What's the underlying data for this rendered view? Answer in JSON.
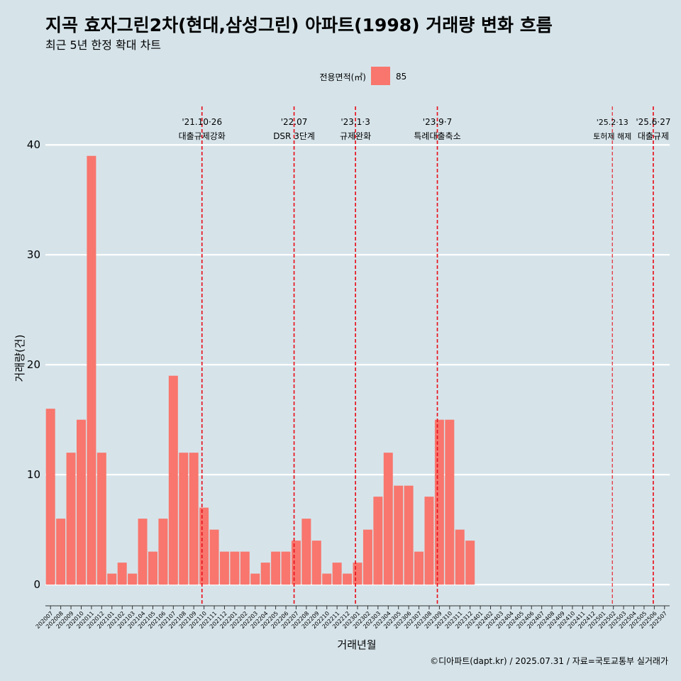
{
  "chart_data": {
    "type": "bar",
    "title": "지곡 효자그린2차(현대,삼성그린) 아파트(1998) 거래량 변화 흐름",
    "subtitle": "최근 5년 한정 확대 차트",
    "xlabel": "거래년월",
    "ylabel": "거래량(건)",
    "caption": "©디아파트(dapt.kr) / 2025.07.31 / 자료=국토교통부 실거래가",
    "legend": {
      "title": "전용면적(㎡)",
      "position": "top",
      "color": "#F8766D"
    },
    "series": [
      {
        "name": "85",
        "color": "#F8766D",
        "values": [
          16,
          6,
          12,
          15,
          39,
          12,
          1,
          2,
          1,
          6,
          3,
          6,
          19,
          12,
          12,
          7,
          5,
          3,
          3,
          3,
          1,
          2,
          3,
          3,
          4,
          6,
          4,
          1,
          2,
          1,
          2,
          5,
          8,
          12,
          9,
          9,
          3,
          8,
          15,
          15,
          5,
          4,
          0,
          0,
          0,
          0,
          0,
          0,
          0,
          0,
          0,
          0,
          0,
          0,
          0,
          0,
          0,
          0,
          0,
          0,
          0
        ]
      }
    ],
    "categories": [
      "202007",
      "202008",
      "202009",
      "202010",
      "202011",
      "202012",
      "202101",
      "202102",
      "202103",
      "202104",
      "202105",
      "202106",
      "202107",
      "202108",
      "202109",
      "202110",
      "202111",
      "202112",
      "202201",
      "202202",
      "202203",
      "202204",
      "202205",
      "202206",
      "202207",
      "202208",
      "202209",
      "202210",
      "202211",
      "202212",
      "202301",
      "202302",
      "202303",
      "202304",
      "202305",
      "202306",
      "202307",
      "202308",
      "202309",
      "202310",
      "202311",
      "202312",
      "202401",
      "202402",
      "202403",
      "202404",
      "202405",
      "202406",
      "202407",
      "202408",
      "202409",
      "202410",
      "202411",
      "202412",
      "202501",
      "202502",
      "202503",
      "202504",
      "202505",
      "202506",
      "202507"
    ],
    "yticks": [
      0,
      10,
      20,
      30,
      40
    ],
    "ylim": [
      -1.8,
      43.5
    ],
    "grid": true,
    "annotations": [
      {
        "x": 15.3,
        "date": "'21.10·26",
        "label": "대출규제강화",
        "style": "bold"
      },
      {
        "x": 24.3,
        "date": "'22.07",
        "label": "DSR 3단계",
        "style": "bold"
      },
      {
        "x": 30.3,
        "date": "'23.1·3",
        "label": "규제완화",
        "style": "bold"
      },
      {
        "x": 38.3,
        "date": "'23.9·7",
        "label": "특례대출축소",
        "style": "bold"
      },
      {
        "x": 55.4,
        "date": "'25.2·13",
        "label": "토허제 해제",
        "style": "thin"
      },
      {
        "x": 59.4,
        "date": "'25.6·27",
        "label": "대출규제",
        "style": "bold"
      }
    ]
  }
}
